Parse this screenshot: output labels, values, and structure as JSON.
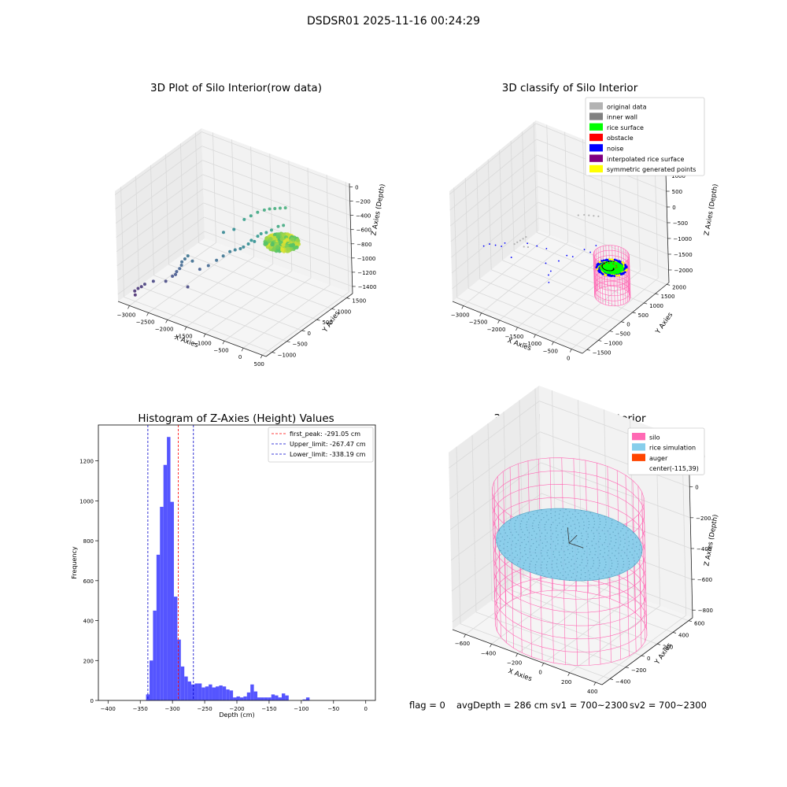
{
  "figure": {
    "suptitle": "DSDSR01 2025-11-16 00:24:29",
    "status_line": {
      "flag": "flag = 0",
      "avg_depth": "avgDepth = 286 cm",
      "sv1": "sv1 = 700~2300",
      "sv2": "sv2 = 700~2300"
    }
  },
  "colors": {
    "pane": "#f2f2f2",
    "pane_side": "#ebebeb",
    "grid": "#d9d9d9",
    "hist_bar": "#4c4cff",
    "first_peak": "#ff0000",
    "limits": "#0000cc",
    "silo": "#ff69b4",
    "rice_sim": "#87ceeb",
    "auger": "#ff4500",
    "legend_original": "#b3b3b3",
    "legend_inner_wall": "#808080",
    "legend_rice": "#00ff00",
    "legend_obstacle": "#ff0000",
    "legend_noise": "#0000ff",
    "legend_interp": "#800080",
    "legend_symmetric": "#ffff00"
  },
  "chart_data": [
    {
      "id": "raw3d",
      "type": "scatter",
      "title": "3D Plot of Silo Interior(row data)",
      "xlabel": "X Axies",
      "ylabel": "Y Axies",
      "zlabel": "Z Axies (Depth)",
      "xlim": [
        -3300,
        600
      ],
      "ylim": [
        -1200,
        1700
      ],
      "zlim": [
        -1500,
        50
      ],
      "xticks": [
        -3000,
        -2500,
        -2000,
        -1500,
        -1000,
        -500,
        0,
        500
      ],
      "yticks": [
        -1000,
        -500,
        0,
        500,
        1000,
        1500
      ],
      "zticks": [
        -1400,
        -1200,
        -1000,
        -800,
        -600,
        -400,
        -200,
        0
      ],
      "grid": true,
      "series": [
        {
          "colormap": "viridis",
          "points": [
            [
              -3000,
              -900,
              -1350
            ],
            [
              -2950,
              -850,
              -1330
            ],
            [
              -3050,
              -950,
              -1380
            ],
            [
              -2900,
              -800,
              -1300
            ],
            [
              -3000,
              -1000,
              -1410
            ],
            [
              -2750,
              -700,
              -1260
            ],
            [
              -2400,
              -500,
              -1180
            ],
            [
              -2350,
              -420,
              -1130
            ],
            [
              -2300,
              -380,
              -1090
            ],
            [
              -2280,
              -340,
              -1050
            ],
            [
              -2300,
              -300,
              -1020
            ],
            [
              -2250,
              -260,
              -980
            ],
            [
              -2200,
              -220,
              -940
            ],
            [
              -2350,
              -460,
              -1160
            ],
            [
              -2500,
              -600,
              -1240
            ],
            [
              -2100,
              -200,
              -1000
            ],
            [
              -2000,
              -500,
              -1250
            ],
            [
              -1950,
              -150,
              -1100
            ],
            [
              -1800,
              -50,
              -1050
            ],
            [
              -1700,
              100,
              -1000
            ],
            [
              -1600,
              200,
              -950
            ],
            [
              -1500,
              300,
              -900
            ],
            [
              -1400,
              350,
              -870
            ],
            [
              -1300,
              400,
              -850
            ],
            [
              -1200,
              380,
              -800
            ],
            [
              -1100,
              420,
              -750
            ],
            [
              -1000,
              500,
              -720
            ],
            [
              -1050,
              460,
              -700
            ],
            [
              -950,
              550,
              -650
            ],
            [
              -900,
              600,
              -620
            ],
            [
              -800,
              650,
              -600
            ],
            [
              -700,
              700,
              -560
            ],
            [
              -600,
              800,
              -520
            ],
            [
              -500,
              850,
              -500
            ],
            [
              -1500,
              800,
              -600
            ],
            [
              -1400,
              900,
              -560
            ],
            [
              -1300,
              1000,
              -520
            ],
            [
              -1200,
              1100,
              -500
            ],
            [
              -1100,
              1150,
              -480
            ],
            [
              -1000,
              1200,
              -470
            ],
            [
              -900,
              1250,
              -460
            ],
            [
              -800,
              1300,
              -450
            ],
            [
              -1900,
              600,
              -800
            ],
            [
              -1700,
              700,
              -750
            ]
          ]
        },
        {
          "name": "rice-cluster",
          "colormap": "viridis",
          "ellipse_center": [
            -150,
            350,
            -520
          ],
          "ellipse_radius": [
            380,
            330,
            130
          ]
        }
      ]
    },
    {
      "id": "classify3d",
      "type": "scatter",
      "title": "3D classify of Silo Interior",
      "xlabel": "X Axies",
      "ylabel": "Y Axies",
      "zlabel": "Z Axies (Depth)",
      "xlim": [
        -3300,
        300
      ],
      "ylim": [
        -1700,
        2100
      ],
      "zlim": [
        -2400,
        1100
      ],
      "xticks": [
        -3000,
        -2500,
        -2000,
        -1500,
        -1000,
        -500,
        0
      ],
      "yticks": [
        -1500,
        -1000,
        -500,
        0,
        500,
        1000,
        1500,
        2000
      ],
      "zticks": [
        -2000,
        -1500,
        -1000,
        -500,
        0,
        500,
        1000
      ],
      "grid": true,
      "legend": {
        "position": "top-right",
        "entries": [
          {
            "label": "original data",
            "color": "#b3b3b3"
          },
          {
            "label": "inner wall",
            "color": "#808080"
          },
          {
            "label": "rice surface",
            "color": "#00ff00"
          },
          {
            "label": "obstacle",
            "color": "#ff0000"
          },
          {
            "label": "noise",
            "color": "#0000ff"
          },
          {
            "label": "interpolated rice surface",
            "color": "#800080"
          },
          {
            "label": "symmetric generated points",
            "color": "#ffff00"
          }
        ]
      },
      "noise_points": [
        [
          -3100,
          -600,
          -1200
        ],
        [
          -3000,
          -500,
          -1150
        ],
        [
          -2900,
          -400,
          -1200
        ],
        [
          -2800,
          -300,
          -1250
        ],
        [
          -2700,
          -300,
          -1100
        ],
        [
          -2400,
          -500,
          -1300
        ],
        [
          -2200,
          -100,
          -1000
        ],
        [
          -2000,
          0,
          -1050
        ],
        [
          -1800,
          100,
          -1100
        ],
        [
          -1700,
          -100,
          -1400
        ],
        [
          -1600,
          -150,
          -1700
        ],
        [
          -1500,
          -200,
          -1500
        ],
        [
          -1400,
          0,
          -1250
        ],
        [
          -1300,
          200,
          -1150
        ],
        [
          -1200,
          300,
          -1200
        ],
        [
          -1000,
          500,
          -1000
        ],
        [
          -900,
          600,
          -1100
        ],
        [
          -1500,
          -300,
          -1800
        ],
        [
          -800,
          700,
          -900
        ]
      ],
      "wall_points": [
        [
          -2500,
          -200,
          -1100
        ],
        [
          -2450,
          -150,
          -1050
        ],
        [
          -2400,
          -100,
          -1000
        ],
        [
          -2350,
          -50,
          -950
        ],
        [
          -2300,
          0,
          -900
        ],
        [
          -2300,
          -100,
          -1150
        ],
        [
          -2250,
          0,
          -1200
        ],
        [
          -1600,
          1200,
          -600
        ],
        [
          -1500,
          1300,
          -600
        ],
        [
          -1400,
          1350,
          -600
        ],
        [
          -1300,
          1400,
          -600
        ],
        [
          -1200,
          1450,
          -600
        ]
      ],
      "silo_cylinder": {
        "center": [
          -150,
          350
        ],
        "radius": 420,
        "z_bottom": -2000,
        "z_top": -700
      },
      "rice_surface": {
        "center": [
          -150,
          350,
          -1100
        ],
        "radius": 360
      }
    },
    {
      "id": "histogram",
      "type": "bar",
      "title": "Histogram of Z-Axies (Height) Values",
      "xlabel": "Depth (cm)",
      "ylabel": "Frequency",
      "xlim": [
        -415,
        15
      ],
      "ylim": [
        0,
        1380
      ],
      "xticks": [
        -400,
        -350,
        -300,
        -250,
        -200,
        -150,
        -100,
        -50,
        0
      ],
      "yticks": [
        0,
        200,
        400,
        600,
        800,
        1000,
        1200
      ],
      "bin_width": 5.4,
      "bin_start": -341,
      "values": [
        30,
        200,
        450,
        730,
        970,
        1180,
        1320,
        995,
        520,
        305,
        170,
        120,
        95,
        80,
        85,
        85,
        65,
        70,
        80,
        65,
        70,
        75,
        70,
        55,
        50,
        15,
        20,
        15,
        20,
        40,
        80,
        45,
        15,
        15,
        15,
        15,
        30,
        25,
        15,
        35,
        25,
        0,
        0,
        0,
        0,
        5,
        15,
        0
      ],
      "reference_lines": [
        {
          "label": "first_peak: -291.05 cm",
          "value": -291.05,
          "color": "#ff0000"
        },
        {
          "label": "Upper_limit: -267.47 cm",
          "value": -267.47,
          "color": "#0000cc"
        },
        {
          "label": "Lower_limit: -338.19 cm",
          "value": -338.19,
          "color": "#0000cc"
        }
      ],
      "legend": {
        "position": "top-right"
      },
      "grid": false
    },
    {
      "id": "simulation3d",
      "type": "scatter",
      "title": "3D simulation of Silo Interior",
      "xlabel": "X Axies",
      "ylabel": "Y Axies",
      "zlabel": "Z Axies (Depth)",
      "xlim": [
        -700,
        450
      ],
      "ylim": [
        -500,
        650
      ],
      "zlim": [
        -850,
        300
      ],
      "xticks": [
        -600,
        -400,
        -200,
        0,
        200,
        400
      ],
      "yticks": [
        -400,
        -200,
        0,
        200,
        400,
        600
      ],
      "zticks": [
        -800,
        -600,
        -400,
        -200,
        0,
        200
      ],
      "grid": true,
      "legend": {
        "position": "top-right",
        "entries": [
          {
            "label": "silo",
            "color": "#ff69b4"
          },
          {
            "label": "rice simulation",
            "color": "#87ceeb"
          },
          {
            "label": "auger",
            "color": "#ff4500"
          },
          {
            "label": "center(-115,39)",
            "color": ""
          }
        ]
      },
      "silo_cylinder": {
        "center": [
          -115,
          39
        ],
        "radius": 500,
        "z_bottom": -860,
        "z_top": 0
      },
      "rice_surface": {
        "center": [
          -115,
          39,
          -320
        ],
        "radius": 480
      }
    }
  ]
}
